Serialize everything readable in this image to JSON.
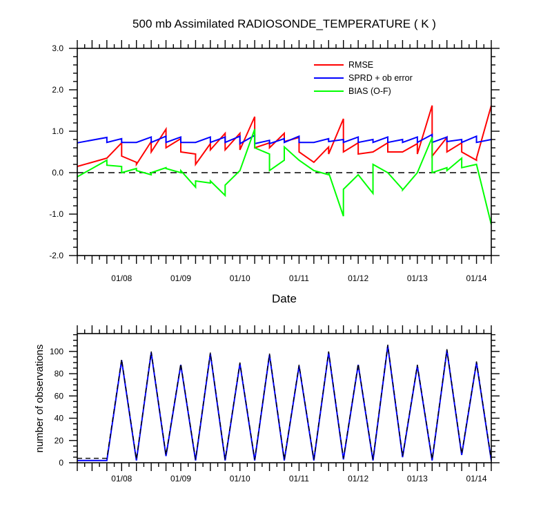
{
  "chart_data": [
    {
      "type": "line",
      "title": "500 mb Assimilated RADIOSONDE_TEMPERATURE ( K )",
      "xlabel": "Date",
      "ylabel": "",
      "xlim": [
        0,
        7.0
      ],
      "ylim": [
        -2.0,
        3.0
      ],
      "x_tick_labels": [
        {
          "x": 0.75,
          "label": "01/08"
        },
        {
          "x": 1.75,
          "label": "01/09"
        },
        {
          "x": 2.75,
          "label": "01/10"
        },
        {
          "x": 3.75,
          "label": "01/11"
        },
        {
          "x": 4.75,
          "label": "01/12"
        },
        {
          "x": 5.75,
          "label": "01/13"
        },
        {
          "x": 6.75,
          "label": "01/14"
        }
      ],
      "y_ticks": [
        {
          "value": 3.0,
          "label": "3.0"
        },
        {
          "value": 2.0,
          "label": "2.0"
        },
        {
          "value": 1.0,
          "label": "1.0"
        },
        {
          "value": 0.0,
          "label": "0.0"
        },
        {
          "value": -1.0,
          "label": "-1.0"
        },
        {
          "value": -2.0,
          "label": "-2.0"
        }
      ],
      "reference_line": {
        "y": 0.0,
        "style": "dashed"
      },
      "legend_position": "top-right",
      "series": [
        {
          "name": "RMSE",
          "color": "#ff0000",
          "x": [
            0,
            0.5,
            0.5,
            0.75,
            0.75,
            1.0,
            1.0,
            1.25,
            1.25,
            1.5,
            1.5,
            1.75,
            1.75,
            2.0,
            2.0,
            2.25,
            2.25,
            2.5,
            2.5,
            2.75,
            2.75,
            3.0,
            3.0,
            3.25,
            3.25,
            3.5,
            3.5,
            3.75,
            3.75,
            4.0,
            4.0,
            4.25,
            4.25,
            4.5,
            4.5,
            4.75,
            4.75,
            5.0,
            5.0,
            5.25,
            5.25,
            5.5,
            5.5,
            5.75,
            5.75,
            6.0,
            6.0,
            6.25,
            6.25,
            6.5,
            6.5,
            6.75,
            6.75,
            7.0
          ],
          "y": [
            0.15,
            0.35,
            0.35,
            0.72,
            0.4,
            0.25,
            0.2,
            0.75,
            0.5,
            1.05,
            0.6,
            0.82,
            0.5,
            0.45,
            0.2,
            0.7,
            0.55,
            0.95,
            0.55,
            0.95,
            0.55,
            1.35,
            0.6,
            0.72,
            0.6,
            0.95,
            0.75,
            0.85,
            0.5,
            0.25,
            0.25,
            0.62,
            0.45,
            1.3,
            0.5,
            0.72,
            0.45,
            0.5,
            0.5,
            0.72,
            0.5,
            0.5,
            0.5,
            0.7,
            0.45,
            1.62,
            0.4,
            0.85,
            0.5,
            0.72,
            0.5,
            0.3,
            0.35,
            1.62
          ]
        },
        {
          "name": "SPRD + ob error",
          "color": "#0000ff",
          "x": [
            0,
            0.5,
            0.5,
            0.75,
            0.75,
            1.0,
            1.0,
            1.25,
            1.25,
            1.5,
            1.5,
            1.75,
            1.75,
            2.0,
            2.0,
            2.25,
            2.25,
            2.5,
            2.5,
            2.75,
            2.75,
            3.0,
            3.0,
            3.25,
            3.25,
            3.5,
            3.5,
            3.75,
            3.75,
            4.0,
            4.0,
            4.25,
            4.25,
            4.5,
            4.5,
            4.75,
            4.75,
            5.0,
            5.0,
            5.25,
            5.25,
            5.5,
            5.5,
            5.75,
            5.75,
            6.0,
            6.0,
            6.25,
            6.25,
            6.5,
            6.5,
            6.75,
            6.75,
            7.0
          ],
          "y": [
            0.72,
            0.85,
            0.73,
            0.82,
            0.73,
            0.73,
            0.73,
            0.86,
            0.73,
            0.88,
            0.73,
            0.86,
            0.73,
            0.73,
            0.73,
            0.86,
            0.73,
            0.86,
            0.73,
            0.88,
            0.7,
            0.9,
            0.7,
            0.78,
            0.7,
            0.82,
            0.73,
            0.88,
            0.73,
            0.73,
            0.73,
            0.82,
            0.75,
            0.8,
            0.73,
            0.86,
            0.73,
            0.8,
            0.73,
            0.86,
            0.73,
            0.8,
            0.73,
            0.86,
            0.73,
            0.92,
            0.73,
            0.86,
            0.75,
            0.8,
            0.73,
            0.88,
            0.73,
            0.8
          ]
        },
        {
          "name": "BIAS (O-F)",
          "color": "#00ff00",
          "x": [
            0,
            0.5,
            0.5,
            0.75,
            0.75,
            1.0,
            1.0,
            1.25,
            1.25,
            1.5,
            1.5,
            1.75,
            1.75,
            2.0,
            2.0,
            2.25,
            2.25,
            2.5,
            2.5,
            2.75,
            2.75,
            3.0,
            3.0,
            3.25,
            3.25,
            3.5,
            3.5,
            3.75,
            3.75,
            4.0,
            4.0,
            4.25,
            4.25,
            4.5,
            4.5,
            4.75,
            4.75,
            5.0,
            5.0,
            5.25,
            5.25,
            5.5,
            5.5,
            5.75,
            5.75,
            6.0,
            6.0,
            6.25,
            6.25,
            6.5,
            6.5,
            6.75,
            6.75,
            7.0
          ],
          "y": [
            -0.1,
            0.3,
            0.18,
            0.15,
            0.0,
            0.1,
            0.05,
            -0.05,
            0.0,
            0.12,
            0.1,
            0.0,
            0.05,
            -0.35,
            -0.2,
            -0.25,
            -0.2,
            -0.55,
            -0.3,
            0.05,
            0.05,
            1.05,
            0.6,
            0.45,
            0.05,
            0.3,
            0.62,
            0.3,
            0.3,
            0.05,
            0.05,
            -0.05,
            0.0,
            -1.05,
            -0.4,
            -0.05,
            -0.05,
            -0.5,
            0.2,
            0.0,
            0.0,
            -0.4,
            -0.42,
            0.0,
            0.0,
            0.85,
            0.0,
            0.12,
            0.05,
            0.35,
            0.12,
            0.2,
            0.2,
            -1.25
          ]
        }
      ]
    },
    {
      "type": "line",
      "title": "",
      "xlabel": "",
      "ylabel": "number of observations",
      "xlim": [
        0,
        7.0
      ],
      "ylim": [
        0,
        116
      ],
      "x_tick_labels": [
        {
          "x": 0.75,
          "label": "01/08"
        },
        {
          "x": 1.75,
          "label": "01/09"
        },
        {
          "x": 2.75,
          "label": "01/10"
        },
        {
          "x": 3.75,
          "label": "01/11"
        },
        {
          "x": 4.75,
          "label": "01/12"
        },
        {
          "x": 5.75,
          "label": "01/13"
        },
        {
          "x": 6.75,
          "label": "01/14"
        }
      ],
      "y_ticks": [
        {
          "value": 0,
          "label": "0"
        },
        {
          "value": 20,
          "label": "20"
        },
        {
          "value": 40,
          "label": "40"
        },
        {
          "value": 60,
          "label": "60"
        },
        {
          "value": 80,
          "label": "80"
        },
        {
          "value": 100,
          "label": "100"
        }
      ],
      "series": [
        {
          "name": "",
          "color": "#0000ff",
          "style": "solid",
          "x": [
            0,
            0.5,
            0.75,
            1.0,
            1.25,
            1.5,
            1.75,
            2.0,
            2.25,
            2.5,
            2.75,
            3.0,
            3.25,
            3.5,
            3.75,
            4.0,
            4.25,
            4.5,
            4.75,
            5.0,
            5.25,
            5.5,
            5.75,
            6.0,
            6.25,
            6.5,
            6.75,
            7.0
          ],
          "y": [
            2,
            2,
            92,
            2,
            99,
            6,
            88,
            2,
            98,
            2,
            89,
            2,
            97,
            2,
            87,
            2,
            99,
            3,
            88,
            2,
            105,
            5,
            87,
            2,
            101,
            7,
            90,
            2
          ]
        },
        {
          "name": "",
          "color": "#000000",
          "style": "dashed",
          "x": [
            0,
            0.5,
            0.75,
            1.0,
            1.25,
            1.5,
            1.75,
            2.0,
            2.25,
            2.5,
            2.75,
            3.0,
            3.25,
            3.5,
            3.75,
            4.0,
            4.25,
            4.5,
            4.75,
            5.0,
            5.25,
            5.5,
            5.75,
            6.0,
            6.25,
            6.5,
            6.75,
            7.0
          ],
          "y": [
            4,
            4,
            93,
            3,
            100,
            7,
            89,
            3,
            99,
            3,
            90,
            3,
            98,
            3,
            88,
            3,
            100,
            4,
            89,
            3,
            106,
            6,
            88,
            3,
            102,
            8,
            91,
            3
          ]
        }
      ]
    }
  ]
}
